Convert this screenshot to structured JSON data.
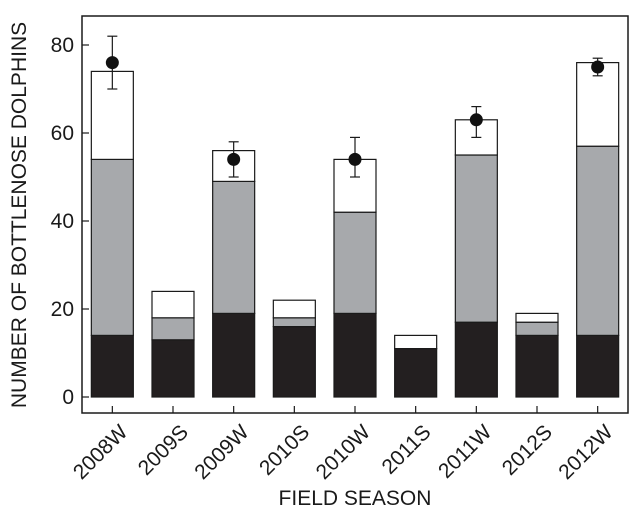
{
  "chart_data": {
    "type": "bar",
    "stacked": true,
    "title": "",
    "xlabel": "FIELD SEASON",
    "ylabel": "NUMBER OF BOTTLENOSE DOLPHINS",
    "ylim": [
      0,
      86
    ],
    "yticks": [
      "0",
      "20",
      "40",
      "60",
      "80"
    ],
    "grid": false,
    "legend": "none",
    "categories": [
      "2008W",
      "2009S",
      "2009W",
      "2010S",
      "2010W",
      "2011S",
      "2011W",
      "2012S",
      "2012W"
    ],
    "series": [
      {
        "color": "#231f20",
        "values": [
          14,
          13,
          19,
          16,
          19,
          11,
          17,
          14,
          14
        ]
      },
      {
        "color": "#a7a9ac",
        "values": [
          40,
          5,
          30,
          2,
          23,
          0,
          38,
          3,
          43
        ]
      },
      {
        "color": "#ffffff",
        "values": [
          20,
          6,
          7,
          4,
          12,
          3,
          8,
          2,
          19
        ]
      }
    ],
    "estimates": {
      "marker": "filled-circle",
      "values": [
        76,
        null,
        54,
        null,
        54,
        null,
        63,
        null,
        75
      ],
      "lower": [
        70,
        null,
        50,
        null,
        50,
        null,
        59,
        null,
        73
      ],
      "upper": [
        82,
        null,
        58,
        null,
        59,
        null,
        66,
        null,
        77
      ]
    }
  }
}
